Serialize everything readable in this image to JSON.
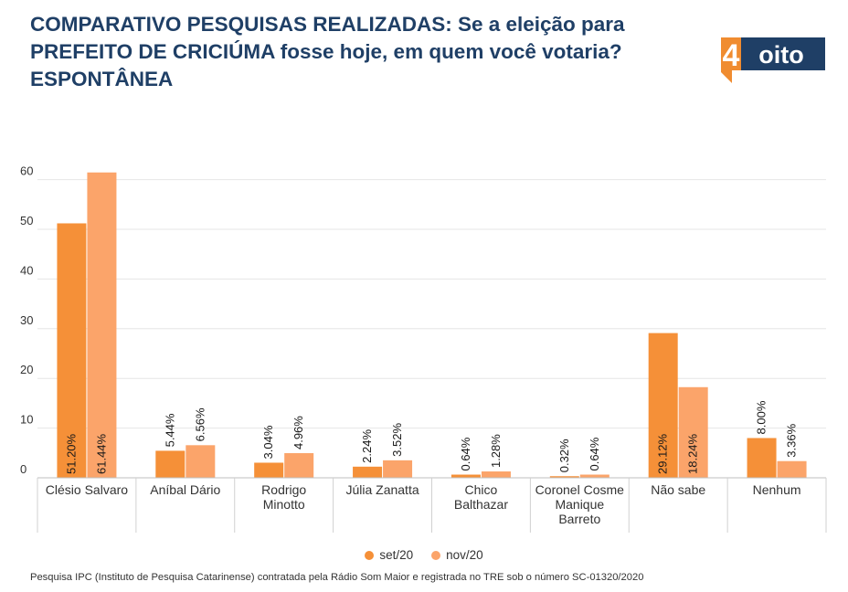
{
  "title": "COMPARATIVO PESQUISAS REALIZADAS: Se a eleição para PREFEITO DE CRICIÚMA fosse hoje, em quem você votaria? ESPONTÂNEA",
  "logo": {
    "number": "4",
    "word": "oito",
    "orange": "#f08c30",
    "navy": "#1f3f66"
  },
  "footer": "Pesquisa IPC (Instituto de Pesquisa Catarinense) contratada pela Rádio Som Maior e registrada no TRE sob o número SC-01320/2020",
  "chart_data": {
    "type": "bar",
    "title": "COMPARATIVO PESQUISAS REALIZADAS: Se a eleição para PREFEITO DE CRICIÚMA fosse hoje, em quem você votaria? ESPONTÂNEA",
    "categories": [
      [
        "Clésio Salvaro"
      ],
      [
        "Aníbal Dário"
      ],
      [
        "Rodrigo",
        "Minotto"
      ],
      [
        "Júlia Zanatta"
      ],
      [
        "Chico",
        "Balthazar"
      ],
      [
        "Coronel Cosme",
        "Manique",
        "Barreto"
      ],
      [
        "Não sabe"
      ],
      [
        "Nenhum"
      ]
    ],
    "series": [
      {
        "name": "set/20",
        "color": "#f59038",
        "values": [
          51.2,
          5.44,
          3.04,
          2.24,
          0.64,
          0.32,
          29.12,
          8.0
        ],
        "labels": [
          "51.20%",
          "5.44%",
          "3.04%",
          "2.24%",
          "0.64%",
          "0.32%",
          "29.12%",
          "8.00%"
        ]
      },
      {
        "name": "nov/20",
        "color": "#fba46a",
        "values": [
          61.44,
          6.56,
          4.96,
          3.52,
          1.28,
          0.64,
          18.24,
          3.36
        ],
        "labels": [
          "61.44%",
          "6.56%",
          "4.96%",
          "3.52%",
          "1.28%",
          "0.64%",
          "18.24%",
          "3.36%"
        ]
      }
    ],
    "yticks": [
      0,
      10,
      20,
      30,
      40,
      50,
      60
    ],
    "ylim": [
      0,
      62
    ],
    "xlabel": "",
    "ylabel": "",
    "grid": true,
    "legend_position": "bottom"
  }
}
